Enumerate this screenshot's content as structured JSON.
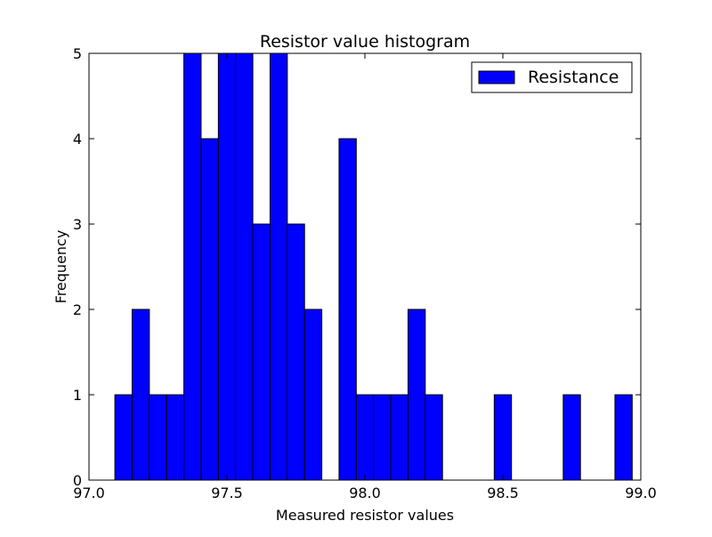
{
  "chart_data": {
    "type": "bar",
    "title": "Resistor value histogram",
    "xlabel": "Measured resistor values",
    "ylabel": "Frequency",
    "xlim": [
      97.0,
      99.0
    ],
    "ylim": [
      0,
      5
    ],
    "x_ticks": [
      "97.0",
      "97.5",
      "98.0",
      "98.5",
      "99.0"
    ],
    "y_ticks": [
      "0",
      "1",
      "2",
      "3",
      "4",
      "5"
    ],
    "bin_width": 0.0625,
    "bins": [
      {
        "x0": 97.0938,
        "count": 1
      },
      {
        "x0": 97.1563,
        "count": 2
      },
      {
        "x0": 97.2188,
        "count": 1
      },
      {
        "x0": 97.2813,
        "count": 1
      },
      {
        "x0": 97.3438,
        "count": 5
      },
      {
        "x0": 97.4063,
        "count": 4
      },
      {
        "x0": 97.4688,
        "count": 5
      },
      {
        "x0": 97.5313,
        "count": 5
      },
      {
        "x0": 97.5938,
        "count": 3
      },
      {
        "x0": 97.6563,
        "count": 5
      },
      {
        "x0": 97.7188,
        "count": 3
      },
      {
        "x0": 97.7813,
        "count": 2
      },
      {
        "x0": 97.8438,
        "count": 0
      },
      {
        "x0": 97.9063,
        "count": 4
      },
      {
        "x0": 97.9688,
        "count": 1
      },
      {
        "x0": 98.0313,
        "count": 1
      },
      {
        "x0": 98.0938,
        "count": 1
      },
      {
        "x0": 98.1563,
        "count": 2
      },
      {
        "x0": 98.2188,
        "count": 1
      },
      {
        "x0": 98.2813,
        "count": 0
      },
      {
        "x0": 98.3438,
        "count": 0
      },
      {
        "x0": 98.4063,
        "count": 0
      },
      {
        "x0": 98.4688,
        "count": 1
      },
      {
        "x0": 98.5313,
        "count": 0
      },
      {
        "x0": 98.5938,
        "count": 0
      },
      {
        "x0": 98.6563,
        "count": 0
      },
      {
        "x0": 98.7188,
        "count": 1
      },
      {
        "x0": 98.7813,
        "count": 0
      },
      {
        "x0": 98.8438,
        "count": 0
      },
      {
        "x0": 98.9063,
        "count": 1
      }
    ],
    "series": [
      {
        "name": "Resistance"
      }
    ],
    "legend": {
      "placement": "top-right"
    },
    "grid": false,
    "colors": {
      "bar_fill": "#0000ff",
      "bar_edge": "#000000",
      "axes": "#000000",
      "background": "#ffffff"
    }
  }
}
